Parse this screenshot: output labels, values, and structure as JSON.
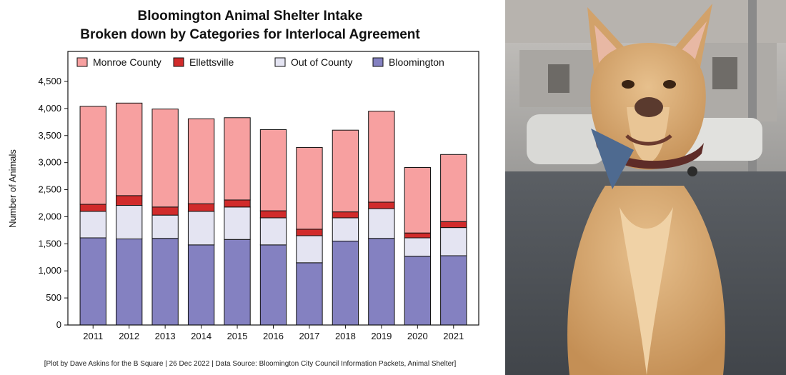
{
  "chart_data": {
    "type": "bar",
    "stacked": true,
    "title": "Bloomington Animal Shelter Intake",
    "subtitle": "Broken down by Categories for Interlocal Agreement",
    "ylabel": "Number of Animals",
    "xlabel": "",
    "ylim": [
      0,
      4500
    ],
    "yticks": [
      0,
      500,
      1000,
      1500,
      2000,
      2500,
      3000,
      3500,
      4000,
      4500
    ],
    "ytick_labels": [
      "0",
      "500",
      "1,000",
      "1,500",
      "2,000",
      "2,500",
      "3,000",
      "3,500",
      "4,000",
      "4,500"
    ],
    "grid": false,
    "legend_position": "top",
    "categories": [
      "2011",
      "2012",
      "2013",
      "2014",
      "2015",
      "2016",
      "2017",
      "2018",
      "2019",
      "2020",
      "2021"
    ],
    "series": [
      {
        "name": "Bloomington",
        "color": "#8481c1",
        "values": [
          1610,
          1590,
          1600,
          1480,
          1580,
          1480,
          1150,
          1550,
          1600,
          1270,
          1280
        ]
      },
      {
        "name": "Out of County",
        "color": "#e4e4f2",
        "values": [
          490,
          620,
          430,
          620,
          600,
          500,
          500,
          430,
          550,
          340,
          520
        ]
      },
      {
        "name": "Ellettsville",
        "color": "#d12b2b",
        "values": [
          130,
          180,
          150,
          140,
          130,
          130,
          120,
          110,
          120,
          90,
          110
        ]
      },
      {
        "name": "Monroe County",
        "color": "#f7a0a0",
        "values": [
          1810,
          1710,
          1810,
          1570,
          1520,
          1500,
          1510,
          1510,
          1680,
          1210,
          1240
        ]
      }
    ],
    "legend_order": [
      "Monroe County",
      "Ellettsville",
      "Out of County",
      "Bloomington"
    ],
    "footer": "[Plot by Dave Askins for the B Square | 26 Dec 2022 | Data Source: Bloomington City Council Information Packets, Animal Shelter]"
  },
  "photo": {
    "subject": "dog-with-bow-tie",
    "colors": {
      "fur": "#d4a56e",
      "bowtie": "#4e6a90",
      "background": "#7d8288"
    }
  }
}
